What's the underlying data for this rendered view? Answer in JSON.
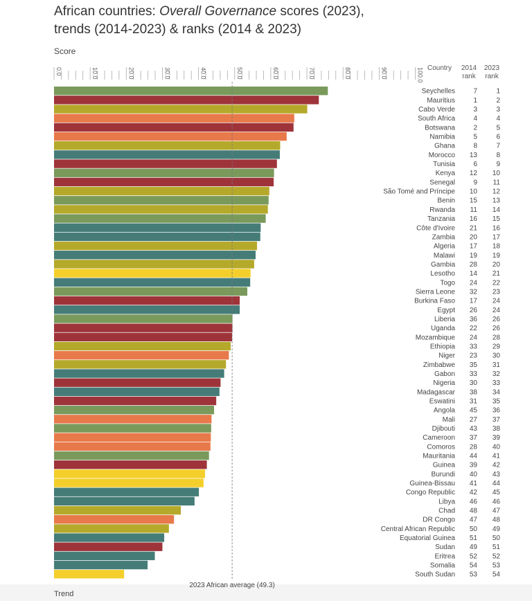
{
  "title": {
    "part1": "African countries: ",
    "italic": "Overall Governance",
    "part2": " scores (2023),",
    "line2": "trends (2014-2023) & ranks (2014 & 2023)"
  },
  "score_label": "Score",
  "trend_label": "Trend",
  "headers": {
    "country": "Country",
    "rank2014_line1": "2014",
    "rank2014_line2": "rank",
    "rank2023_line1": "2023",
    "rank2023_line2": "rank"
  },
  "average_label": "2023 African average (49.3)",
  "colors": {
    "green": "#7a9a5c",
    "red": "#9e343a",
    "olive": "#b5a92b",
    "orange": "#e8794a",
    "teal": "#457c78",
    "yellow": "#f4cf2b"
  },
  "chart_data": {
    "type": "bar",
    "orientation": "horizontal",
    "xlabel": "Score",
    "xlim": [
      0,
      100
    ],
    "ticks": [
      "0.0",
      "10.0",
      "20.0",
      "30.0",
      "40.0",
      "50.0",
      "60.0",
      "70.0",
      "80.0",
      "90.0",
      "100.0"
    ],
    "average": 49.3,
    "rows": [
      {
        "country": "Seychelles",
        "score": 75.8,
        "rank2014": "7",
        "rank2023": "1",
        "trend": "green"
      },
      {
        "country": "Mauritius",
        "score": 73.3,
        "rank2014": "1",
        "rank2023": "2",
        "trend": "red"
      },
      {
        "country": "Cabo Verde",
        "score": 70.1,
        "rank2014": "3",
        "rank2023": "3",
        "trend": "olive"
      },
      {
        "country": "South Africa",
        "score": 66.5,
        "rank2014": "4",
        "rank2023": "4",
        "trend": "orange"
      },
      {
        "country": "Botswana",
        "score": 66.3,
        "rank2014": "2",
        "rank2023": "5",
        "trend": "red"
      },
      {
        "country": "Namibia",
        "score": 64.4,
        "rank2014": "5",
        "rank2023": "6",
        "trend": "orange"
      },
      {
        "country": "Ghana",
        "score": 62.6,
        "rank2014": "8",
        "rank2023": "7",
        "trend": "olive"
      },
      {
        "country": "Morocco",
        "score": 62.5,
        "rank2014": "13",
        "rank2023": "8",
        "trend": "teal"
      },
      {
        "country": "Tunisia",
        "score": 61.7,
        "rank2014": "6",
        "rank2023": "9",
        "trend": "red"
      },
      {
        "country": "Kenya",
        "score": 60.9,
        "rank2014": "12",
        "rank2023": "10",
        "trend": "green"
      },
      {
        "country": "Senegal",
        "score": 60.8,
        "rank2014": "9",
        "rank2023": "11",
        "trend": "red"
      },
      {
        "country": "São Tomé and Príncipe",
        "score": 59.6,
        "rank2014": "10",
        "rank2023": "12",
        "trend": "olive"
      },
      {
        "country": "Benin",
        "score": 59.4,
        "rank2014": "15",
        "rank2023": "13",
        "trend": "green"
      },
      {
        "country": "Rwanda",
        "score": 59.2,
        "rank2014": "11",
        "rank2023": "14",
        "trend": "olive"
      },
      {
        "country": "Tanzania",
        "score": 58.6,
        "rank2014": "16",
        "rank2023": "15",
        "trend": "green"
      },
      {
        "country": "Côte d'Ivoire",
        "score": 57.2,
        "rank2014": "21",
        "rank2023": "16",
        "trend": "teal"
      },
      {
        "country": "Zambia",
        "score": 57.1,
        "rank2014": "20",
        "rank2023": "17",
        "trend": "teal"
      },
      {
        "country": "Algeria",
        "score": 56.2,
        "rank2014": "17",
        "rank2023": "18",
        "trend": "olive"
      },
      {
        "country": "Malawi",
        "score": 55.8,
        "rank2014": "19",
        "rank2023": "19",
        "trend": "teal"
      },
      {
        "country": "Gambia",
        "score": 55.4,
        "rank2014": "28",
        "rank2023": "20",
        "trend": "olive"
      },
      {
        "country": "Lesotho",
        "score": 54.4,
        "rank2014": "14",
        "rank2023": "21",
        "trend": "yellow"
      },
      {
        "country": "Togo",
        "score": 54.3,
        "rank2014": "24",
        "rank2023": "22",
        "trend": "teal"
      },
      {
        "country": "Sierra Leone",
        "score": 53.5,
        "rank2014": "32",
        "rank2023": "23",
        "trend": "green"
      },
      {
        "country": "Burkina Faso",
        "score": 51.4,
        "rank2014": "17",
        "rank2023": "24",
        "trend": "red"
      },
      {
        "country": "Egypt",
        "score": 51.4,
        "rank2014": "26",
        "rank2023": "24",
        "trend": "teal"
      },
      {
        "country": "Liberia",
        "score": 49.4,
        "rank2014": "36",
        "rank2023": "26",
        "trend": "green"
      },
      {
        "country": "Uganda",
        "score": 49.4,
        "rank2014": "22",
        "rank2023": "26",
        "trend": "red"
      },
      {
        "country": "Mozambique",
        "score": 49.3,
        "rank2014": "24",
        "rank2023": "28",
        "trend": "red"
      },
      {
        "country": "Ethiopia",
        "score": 48.9,
        "rank2014": "33",
        "rank2023": "29",
        "trend": "olive"
      },
      {
        "country": "Niger",
        "score": 48.4,
        "rank2014": "23",
        "rank2023": "30",
        "trend": "orange"
      },
      {
        "country": "Zimbabwe",
        "score": 47.6,
        "rank2014": "35",
        "rank2023": "31",
        "trend": "olive"
      },
      {
        "country": "Gabon",
        "score": 47.1,
        "rank2014": "33",
        "rank2023": "32",
        "trend": "teal"
      },
      {
        "country": "Nigeria",
        "score": 46.1,
        "rank2014": "30",
        "rank2023": "33",
        "trend": "red"
      },
      {
        "country": "Madagascar",
        "score": 45.8,
        "rank2014": "38",
        "rank2023": "34",
        "trend": "teal"
      },
      {
        "country": "Eswatini",
        "score": 44.9,
        "rank2014": "31",
        "rank2023": "35",
        "trend": "red"
      },
      {
        "country": "Angola",
        "score": 44.3,
        "rank2014": "45",
        "rank2023": "36",
        "trend": "green"
      },
      {
        "country": "Mali",
        "score": 43.6,
        "rank2014": "27",
        "rank2023": "37",
        "trend": "orange"
      },
      {
        "country": "Djibouti",
        "score": 43.5,
        "rank2014": "43",
        "rank2023": "38",
        "trend": "green"
      },
      {
        "country": "Cameroon",
        "score": 43.4,
        "rank2014": "37",
        "rank2023": "39",
        "trend": "orange"
      },
      {
        "country": "Comoros",
        "score": 43.3,
        "rank2014": "28",
        "rank2023": "40",
        "trend": "orange"
      },
      {
        "country": "Mauritania",
        "score": 42.9,
        "rank2014": "44",
        "rank2023": "41",
        "trend": "green"
      },
      {
        "country": "Guinea",
        "score": 42.3,
        "rank2014": "39",
        "rank2023": "42",
        "trend": "red"
      },
      {
        "country": "Burundi",
        "score": 41.8,
        "rank2014": "40",
        "rank2023": "43",
        "trend": "yellow"
      },
      {
        "country": "Guinea-Bissau",
        "score": 41.4,
        "rank2014": "41",
        "rank2023": "44",
        "trend": "yellow"
      },
      {
        "country": "Congo Republic",
        "score": 40.1,
        "rank2014": "42",
        "rank2023": "45",
        "trend": "teal"
      },
      {
        "country": "Libya",
        "score": 38.9,
        "rank2014": "46",
        "rank2023": "46",
        "trend": "teal"
      },
      {
        "country": "Chad",
        "score": 35.1,
        "rank2014": "48",
        "rank2023": "47",
        "trend": "olive"
      },
      {
        "country": "DR Congo",
        "score": 33.2,
        "rank2014": "47",
        "rank2023": "48",
        "trend": "orange"
      },
      {
        "country": "Central African Republic",
        "score": 31.8,
        "rank2014": "50",
        "rank2023": "49",
        "trend": "olive"
      },
      {
        "country": "Equatorial Guinea",
        "score": 30.5,
        "rank2014": "51",
        "rank2023": "50",
        "trend": "teal"
      },
      {
        "country": "Sudan",
        "score": 30.0,
        "rank2014": "49",
        "rank2023": "51",
        "trend": "red"
      },
      {
        "country": "Eritrea",
        "score": 27.9,
        "rank2014": "52",
        "rank2023": "52",
        "trend": "teal"
      },
      {
        "country": "Somalia",
        "score": 25.9,
        "rank2014": "54",
        "rank2023": "53",
        "trend": "teal"
      },
      {
        "country": "South Sudan",
        "score": 19.4,
        "rank2014": "53",
        "rank2023": "54",
        "trend": "yellow"
      }
    ]
  }
}
